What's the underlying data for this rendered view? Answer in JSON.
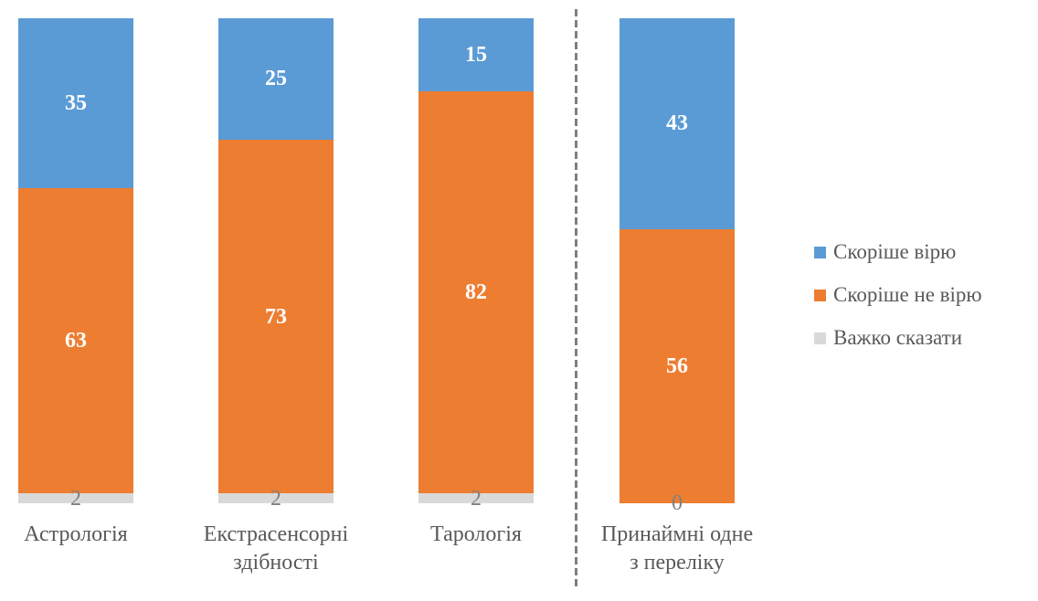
{
  "chart_data": {
    "type": "bar",
    "variant": "stacked-100",
    "title": "",
    "xlabel": "",
    "ylabel": "",
    "grid": false,
    "legend_position": "right",
    "categories": [
      "Астрологія",
      "Екстрасенсорні\nздібності",
      "Тарологія",
      "Принаймні одне\nз переліку"
    ],
    "series": [
      {
        "name": "Скоріше вірю",
        "color": "#5B9BD5",
        "values": [
          35,
          25,
          15,
          43
        ],
        "label_color": "#FFFFFF",
        "label_bold": true
      },
      {
        "name": "Скоріше не вірю",
        "color": "#ED7D31",
        "values": [
          63,
          73,
          82,
          56
        ],
        "label_color": "#FFFFFF",
        "label_bold": true
      },
      {
        "name": "Важко сказати",
        "color": "#D9D9D9",
        "values": [
          2,
          2,
          2,
          0
        ],
        "label_color": "#808080",
        "label_bold": false
      }
    ],
    "separator": {
      "style": "dashed-vertical-line",
      "after_category_index": 2,
      "color": "#7F7F7F"
    },
    "category_label_color": "#595959",
    "legend_text_color": "#595959",
    "background_color": "#FFFFFF"
  }
}
